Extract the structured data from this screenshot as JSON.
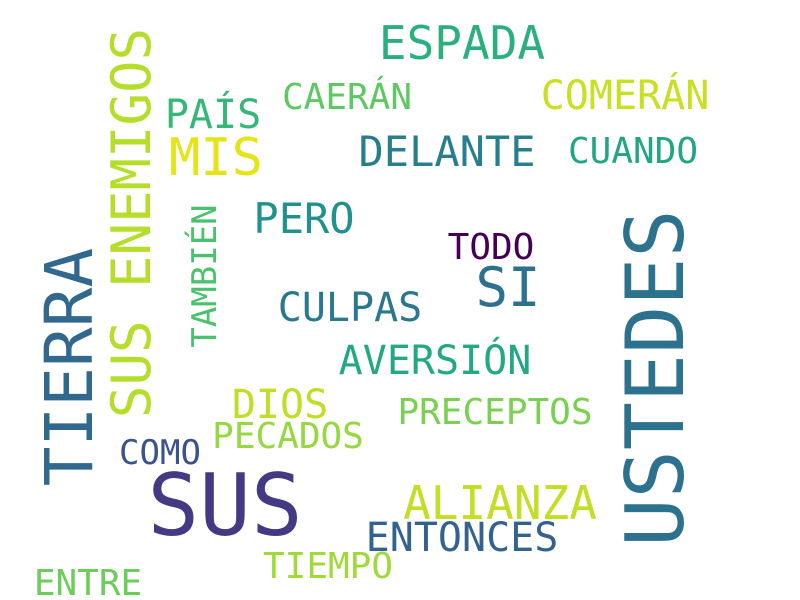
{
  "cloud": {
    "words": [
      {
        "text": "SUS",
        "color": "#443a83"
      },
      {
        "text": "USTEDES",
        "color": "#2c728e"
      },
      {
        "text": "TIERRA",
        "color": "#31688e"
      },
      {
        "text": "SUS ENEMIGOS",
        "color": "#b5de2b"
      },
      {
        "text": "ESPADA",
        "color": "#2ab07f"
      },
      {
        "text": "COMERÁN",
        "color": "#c8e020"
      },
      {
        "text": "CAERÁN",
        "color": "#5ec962"
      },
      {
        "text": "PAÍS",
        "color": "#35b779"
      },
      {
        "text": "MIS",
        "color": "#e5e419"
      },
      {
        "text": "DELANTE",
        "color": "#277f8e"
      },
      {
        "text": "CUANDO",
        "color": "#21a685"
      },
      {
        "text": "PERO",
        "color": "#21918c"
      },
      {
        "text": "TAMBIÉN",
        "color": "#4ac16d"
      },
      {
        "text": "TODO",
        "color": "#440154"
      },
      {
        "text": "SI",
        "color": "#2c728e"
      },
      {
        "text": "CULPAS",
        "color": "#2a788e"
      },
      {
        "text": "AVERSIÓN",
        "color": "#22a884"
      },
      {
        "text": "DIOS",
        "color": "#bddf26"
      },
      {
        "text": "PRECEPTOS",
        "color": "#7ad151"
      },
      {
        "text": "COMO",
        "color": "#3b528b"
      },
      {
        "text": "PECADOS",
        "color": "#95d840"
      },
      {
        "text": "ALIANZA",
        "color": "#c0df25"
      },
      {
        "text": "ENTONCES",
        "color": "#33638d"
      },
      {
        "text": "TIEMPO",
        "color": "#a0da39"
      },
      {
        "text": "ENTRE",
        "color": "#6ccd5a"
      }
    ]
  }
}
